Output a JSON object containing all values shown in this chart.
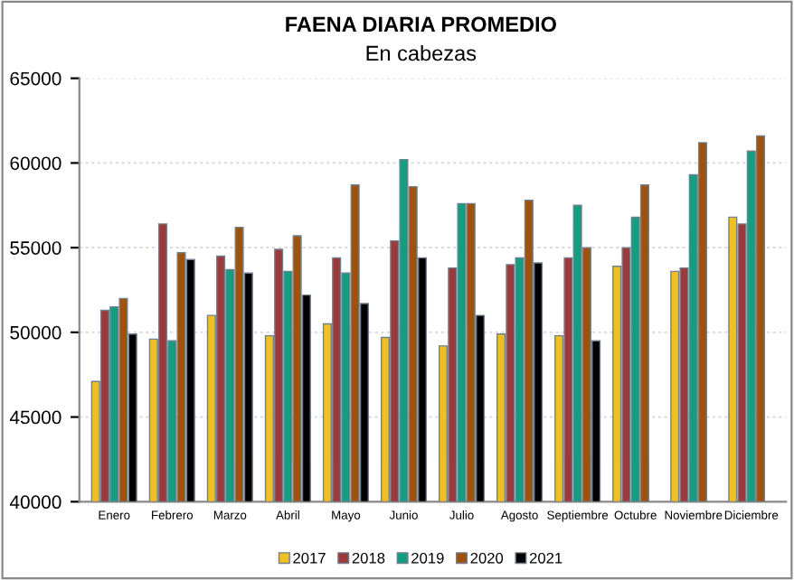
{
  "chart_data": {
    "type": "bar",
    "title": "FAENA DIARIA PROMEDIO",
    "subtitle": "En cabezas",
    "categories": [
      "Enero",
      "Febrero",
      "Marzo",
      "Abril",
      "Mayo",
      "Junio",
      "Julio",
      "Agosto",
      "Septiembre",
      "Octubre",
      "Noviembre",
      "Diciembre"
    ],
    "series": [
      {
        "name": "2017",
        "color": "#f0c020",
        "values": [
          47100,
          49600,
          51000,
          49800,
          50500,
          49700,
          49200,
          49900,
          49800,
          53900,
          53600,
          56800
        ]
      },
      {
        "name": "2018",
        "color": "#9b3a3a",
        "values": [
          51300,
          56400,
          54500,
          54900,
          54400,
          55400,
          53800,
          54000,
          54400,
          55000,
          53800,
          56400
        ]
      },
      {
        "name": "2019",
        "color": "#139f7f",
        "values": [
          51500,
          49500,
          53700,
          53600,
          53500,
          60200,
          57600,
          54400,
          57500,
          56800,
          59300,
          60700
        ]
      },
      {
        "name": "2020",
        "color": "#a0520a",
        "values": [
          52000,
          54700,
          56200,
          55700,
          58700,
          58600,
          57600,
          57800,
          55000,
          58700,
          61200,
          61600
        ]
      },
      {
        "name": "2021",
        "color": "#000000",
        "values": [
          49900,
          54300,
          53500,
          52200,
          51700,
          54400,
          51000,
          54100,
          49500,
          null,
          null,
          null
        ]
      }
    ],
    "ylim": [
      40000,
      65000
    ],
    "yticks": [
      40000,
      45000,
      50000,
      55000,
      60000,
      65000
    ],
    "grid": "y",
    "legend": "bottom"
  }
}
